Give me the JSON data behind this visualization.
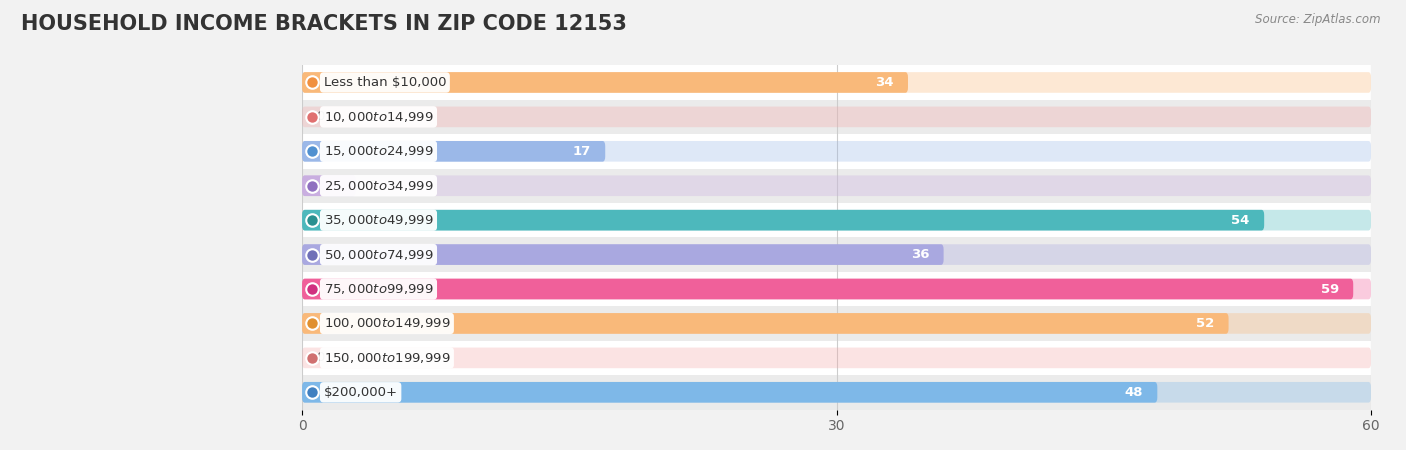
{
  "title": "HOUSEHOLD INCOME BRACKETS IN ZIP CODE 12153",
  "source": "Source: ZipAtlas.com",
  "categories": [
    "Less than $10,000",
    "$10,000 to $14,999",
    "$15,000 to $24,999",
    "$25,000 to $34,999",
    "$35,000 to $49,999",
    "$50,000 to $74,999",
    "$75,000 to $99,999",
    "$100,000 to $149,999",
    "$150,000 to $199,999",
    "$200,000+"
  ],
  "values": [
    34,
    0,
    17,
    3,
    54,
    36,
    59,
    52,
    0,
    48
  ],
  "bar_colors": [
    "#F9B97A",
    "#F4A8A8",
    "#9BB8E8",
    "#C9AEE0",
    "#4DB8BC",
    "#A9A8E0",
    "#F0609A",
    "#F9B97A",
    "#F4A8A8",
    "#7EB8E8"
  ],
  "dot_colors": [
    "#F09040",
    "#E07070",
    "#5090D0",
    "#9070C0",
    "#2A9090",
    "#7070B8",
    "#D03080",
    "#E09030",
    "#D07070",
    "#4080C0"
  ],
  "xlim": [
    0,
    60
  ],
  "xticks": [
    0,
    30,
    60
  ],
  "background_color": "#f2f2f2",
  "title_fontsize": 15,
  "label_fontsize": 9.5,
  "value_fontsize": 9.5,
  "bar_height": 0.58,
  "row_bg_colors": [
    "#ffffff",
    "#ebebeb"
  ]
}
